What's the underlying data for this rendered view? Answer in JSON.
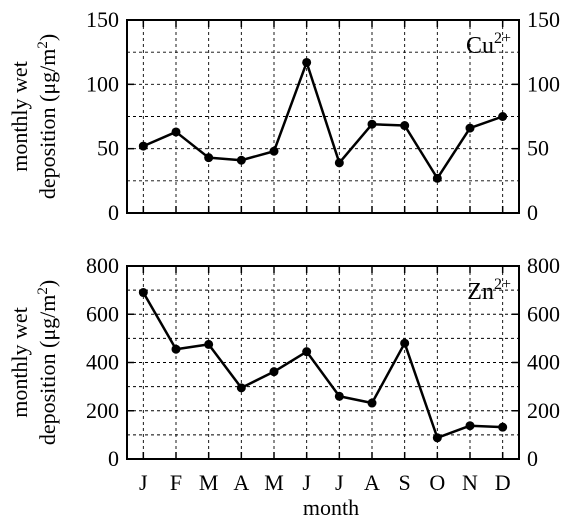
{
  "chart_data": [
    {
      "type": "line",
      "panel": "top",
      "title": "",
      "ion_label": "Cu",
      "ion_charge": "2+",
      "ylabel_line1": "monthly wet",
      "ylabel_line2_prefix": "deposition (μg/m",
      "ylabel_sup": "2",
      "ylabel_line2_suffix": ")",
      "xlabel": "",
      "categories": [
        "J",
        "F",
        "M",
        "A",
        "M",
        "J",
        "J",
        "A",
        "S",
        "O",
        "N",
        "D"
      ],
      "values": [
        52,
        63,
        43,
        41,
        48,
        117,
        39,
        69,
        68,
        27,
        66,
        75
      ],
      "ylim": [
        0,
        150
      ],
      "yticks": [
        0,
        50,
        100,
        150
      ],
      "ytick_labels": [
        "0",
        "50",
        "100",
        "150"
      ],
      "ygrid_step": 25,
      "grid": true,
      "right_axis_labels": true
    },
    {
      "type": "line",
      "panel": "bottom",
      "title": "",
      "ion_label": "Zn",
      "ion_charge": "2+",
      "ylabel_line1": "monthly wet",
      "ylabel_line2_prefix": "deposition (μg/m",
      "ylabel_sup": "2",
      "ylabel_line2_suffix": ")",
      "xlabel": "month",
      "categories": [
        "J",
        "F",
        "M",
        "A",
        "M",
        "J",
        "J",
        "A",
        "S",
        "O",
        "N",
        "D"
      ],
      "values": [
        690,
        455,
        475,
        295,
        362,
        445,
        260,
        232,
        480,
        88,
        138,
        132
      ],
      "ylim": [
        0,
        800
      ],
      "yticks": [
        0,
        200,
        400,
        600,
        800
      ],
      "ytick_labels": [
        "0",
        "200",
        "400",
        "600",
        "800"
      ],
      "ygrid_step": 100,
      "grid": true,
      "right_axis_labels": true
    }
  ]
}
